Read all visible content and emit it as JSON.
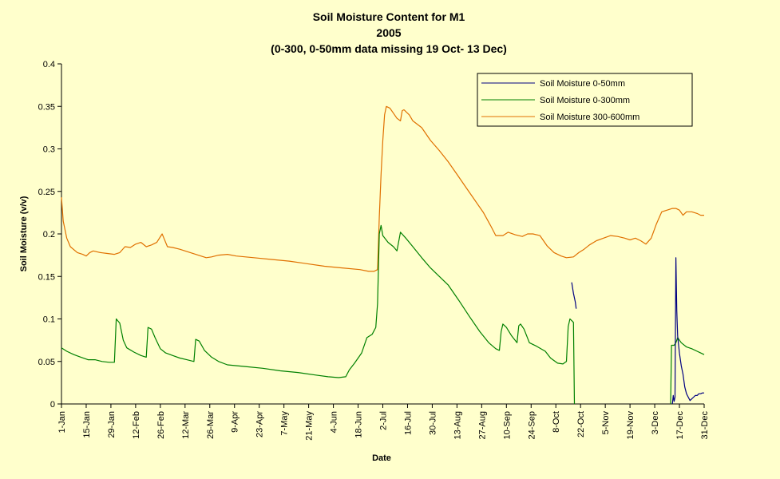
{
  "chart_data": {
    "type": "line",
    "title": "Soil Moisture Content for M1",
    "subtitle_1": "2005",
    "subtitle_2": "(0-300, 0-50mm data  missing 19 Oct- 13 Dec)",
    "xlabel": "Date",
    "ylabel": "Soil Moisture (v/v)",
    "ylim": [
      0,
      0.4
    ],
    "y_ticks": [
      "0",
      "0.05",
      "0.1",
      "0.15",
      "0.2",
      "0.25",
      "0.3",
      "0.35",
      "0.4"
    ],
    "xlim_day_of_year": [
      1,
      365
    ],
    "x_ticks": [
      {
        "day": 1,
        "label": "1-Jan"
      },
      {
        "day": 15,
        "label": "15-Jan"
      },
      {
        "day": 29,
        "label": "29-Jan"
      },
      {
        "day": 43,
        "label": "12-Feb"
      },
      {
        "day": 57,
        "label": "26-Feb"
      },
      {
        "day": 71,
        "label": "12-Mar"
      },
      {
        "day": 85,
        "label": "26-Mar"
      },
      {
        "day": 99,
        "label": "9-Apr"
      },
      {
        "day": 113,
        "label": "23-Apr"
      },
      {
        "day": 127,
        "label": "7-May"
      },
      {
        "day": 141,
        "label": "21-May"
      },
      {
        "day": 155,
        "label": "4-Jun"
      },
      {
        "day": 169,
        "label": "18-Jun"
      },
      {
        "day": 183,
        "label": "2-Jul"
      },
      {
        "day": 197,
        "label": "16-Jul"
      },
      {
        "day": 211,
        "label": "30-Jul"
      },
      {
        "day": 225,
        "label": "13-Aug"
      },
      {
        "day": 239,
        "label": "27-Aug"
      },
      {
        "day": 253,
        "label": "10-Sep"
      },
      {
        "day": 267,
        "label": "24-Sep"
      },
      {
        "day": 281,
        "label": "8-Oct"
      },
      {
        "day": 295,
        "label": "22-Oct"
      },
      {
        "day": 309,
        "label": "5-Nov"
      },
      {
        "day": 323,
        "label": "19-Nov"
      },
      {
        "day": 337,
        "label": "3-Dec"
      },
      {
        "day": 351,
        "label": "17-Dec"
      },
      {
        "day": 365,
        "label": "31-Dec"
      }
    ],
    "grid": false,
    "legend_position": "top-right",
    "series": [
      {
        "name": "Soil Moisture 0-50mm",
        "color": "#000080",
        "segments": [
          [
            [
              290,
              0.143
            ],
            [
              291,
              0.13
            ],
            [
              292,
              0.12
            ],
            [
              292.5,
              0.112
            ]
          ],
          [
            [
              347,
              0.0
            ],
            [
              347.5,
              0.01
            ],
            [
              348,
              0.003
            ],
            [
              348.5,
              0.008
            ],
            [
              349,
              0.172
            ],
            [
              349.5,
              0.11
            ],
            [
              350,
              0.08
            ],
            [
              351,
              0.06
            ],
            [
              352,
              0.045
            ],
            [
              353,
              0.035
            ],
            [
              354,
              0.02
            ],
            [
              355,
              0.012
            ],
            [
              356,
              0.008
            ],
            [
              357,
              0.004
            ],
            [
              358,
              0.006
            ],
            [
              359,
              0.008
            ],
            [
              360,
              0.01
            ],
            [
              361,
              0.01
            ],
            [
              362,
              0.012
            ],
            [
              363,
              0.012
            ],
            [
              364,
              0.013
            ],
            [
              365,
              0.013
            ]
          ]
        ]
      },
      {
        "name": "Soil Moisture 0-300mm",
        "color": "#008000",
        "segments": [
          [
            [
              1,
              0.066
            ],
            [
              4,
              0.062
            ],
            [
              8,
              0.058
            ],
            [
              12,
              0.055
            ],
            [
              16,
              0.052
            ],
            [
              20,
              0.052
            ],
            [
              24,
              0.05
            ],
            [
              28,
              0.049
            ],
            [
              31,
              0.049
            ],
            [
              32,
              0.1
            ],
            [
              34,
              0.095
            ],
            [
              36,
              0.075
            ],
            [
              38,
              0.066
            ],
            [
              42,
              0.061
            ],
            [
              46,
              0.057
            ],
            [
              49,
              0.055
            ],
            [
              50,
              0.09
            ],
            [
              52,
              0.088
            ],
            [
              54,
              0.078
            ],
            [
              57,
              0.065
            ],
            [
              60,
              0.06
            ],
            [
              64,
              0.057
            ],
            [
              68,
              0.054
            ],
            [
              72,
              0.052
            ],
            [
              76,
              0.05
            ],
            [
              77,
              0.076
            ],
            [
              79,
              0.074
            ],
            [
              82,
              0.063
            ],
            [
              86,
              0.055
            ],
            [
              90,
              0.05
            ],
            [
              95,
              0.046
            ],
            [
              105,
              0.044
            ],
            [
              115,
              0.042
            ],
            [
              125,
              0.039
            ],
            [
              135,
              0.037
            ],
            [
              145,
              0.034
            ],
            [
              152,
              0.032
            ],
            [
              158,
              0.031
            ],
            [
              162,
              0.032
            ],
            [
              164,
              0.04
            ],
            [
              167,
              0.048
            ],
            [
              171,
              0.06
            ],
            [
              174,
              0.078
            ],
            [
              177,
              0.082
            ],
            [
              179,
              0.09
            ],
            [
              180,
              0.118
            ],
            [
              181,
              0.2
            ],
            [
              182,
              0.21
            ],
            [
              183,
              0.198
            ],
            [
              186,
              0.19
            ],
            [
              189,
              0.185
            ],
            [
              191,
              0.18
            ],
            [
              193,
              0.202
            ],
            [
              196,
              0.195
            ],
            [
              200,
              0.185
            ],
            [
              205,
              0.172
            ],
            [
              210,
              0.16
            ],
            [
              215,
              0.15
            ],
            [
              220,
              0.14
            ],
            [
              226,
              0.122
            ],
            [
              232,
              0.103
            ],
            [
              238,
              0.085
            ],
            [
              243,
              0.072
            ],
            [
              247,
              0.065
            ],
            [
              249,
              0.063
            ],
            [
              250,
              0.085
            ],
            [
              251,
              0.094
            ],
            [
              253,
              0.09
            ],
            [
              256,
              0.08
            ],
            [
              259,
              0.072
            ],
            [
              260,
              0.092
            ],
            [
              261,
              0.094
            ],
            [
              263,
              0.088
            ],
            [
              266,
              0.072
            ],
            [
              270,
              0.068
            ],
            [
              275,
              0.062
            ],
            [
              278,
              0.054
            ],
            [
              282,
              0.048
            ],
            [
              285,
              0.047
            ],
            [
              287,
              0.05
            ],
            [
              288,
              0.091
            ],
            [
              289,
              0.1
            ],
            [
              290,
              0.098
            ],
            [
              291,
              0.096
            ],
            [
              291.5,
              0.0
            ]
          ],
          [
            [
              346,
              0.0
            ],
            [
              346.5,
              0.069
            ],
            [
              348,
              0.069
            ],
            [
              349,
              0.072
            ],
            [
              350,
              0.078
            ],
            [
              352,
              0.072
            ],
            [
              355,
              0.067
            ],
            [
              358,
              0.065
            ],
            [
              361,
              0.062
            ],
            [
              363,
              0.06
            ],
            [
              365,
              0.058
            ]
          ]
        ]
      },
      {
        "name": "Soil Moisture 300-600mm",
        "color": "#E07000",
        "segments": [
          [
            [
              1,
              0.243
            ],
            [
              2,
              0.215
            ],
            [
              4,
              0.195
            ],
            [
              6,
              0.185
            ],
            [
              10,
              0.178
            ],
            [
              13,
              0.176
            ],
            [
              15,
              0.174
            ],
            [
              17,
              0.178
            ],
            [
              19,
              0.18
            ],
            [
              23,
              0.178
            ],
            [
              27,
              0.177
            ],
            [
              31,
              0.176
            ],
            [
              34,
              0.178
            ],
            [
              37,
              0.185
            ],
            [
              40,
              0.184
            ],
            [
              43,
              0.188
            ],
            [
              46,
              0.19
            ],
            [
              49,
              0.185
            ],
            [
              52,
              0.187
            ],
            [
              55,
              0.19
            ],
            [
              58,
              0.2
            ],
            [
              59,
              0.195
            ],
            [
              61,
              0.185
            ],
            [
              64,
              0.184
            ],
            [
              68,
              0.182
            ],
            [
              71,
              0.18
            ],
            [
              74,
              0.178
            ],
            [
              77,
              0.176
            ],
            [
              80,
              0.174
            ],
            [
              83,
              0.172
            ],
            [
              86,
              0.173
            ],
            [
              90,
              0.175
            ],
            [
              95,
              0.176
            ],
            [
              100,
              0.174
            ],
            [
              110,
              0.172
            ],
            [
              120,
              0.17
            ],
            [
              130,
              0.168
            ],
            [
              140,
              0.165
            ],
            [
              150,
              0.162
            ],
            [
              160,
              0.16
            ],
            [
              170,
              0.158
            ],
            [
              175,
              0.156
            ],
            [
              178,
              0.156
            ],
            [
              180,
              0.158
            ],
            [
              181,
              0.22
            ],
            [
              182,
              0.27
            ],
            [
              183,
              0.31
            ],
            [
              184,
              0.34
            ],
            [
              185,
              0.35
            ],
            [
              187,
              0.348
            ],
            [
              189,
              0.342
            ],
            [
              191,
              0.336
            ],
            [
              193,
              0.333
            ],
            [
              194,
              0.345
            ],
            [
              195,
              0.346
            ],
            [
              198,
              0.34
            ],
            [
              200,
              0.333
            ],
            [
              205,
              0.325
            ],
            [
              210,
              0.31
            ],
            [
              215,
              0.298
            ],
            [
              220,
              0.285
            ],
            [
              225,
              0.27
            ],
            [
              230,
              0.255
            ],
            [
              235,
              0.24
            ],
            [
              240,
              0.225
            ],
            [
              244,
              0.21
            ],
            [
              247,
              0.198
            ],
            [
              251,
              0.198
            ],
            [
              254,
              0.202
            ],
            [
              258,
              0.199
            ],
            [
              262,
              0.197
            ],
            [
              265,
              0.2
            ],
            [
              268,
              0.2
            ],
            [
              272,
              0.198
            ],
            [
              276,
              0.186
            ],
            [
              280,
              0.178
            ],
            [
              284,
              0.174
            ],
            [
              287,
              0.172
            ],
            [
              291,
              0.173
            ],
            [
              294,
              0.178
            ],
            [
              297,
              0.182
            ],
            [
              300,
              0.187
            ],
            [
              304,
              0.192
            ],
            [
              308,
              0.195
            ],
            [
              312,
              0.198
            ],
            [
              316,
              0.197
            ],
            [
              320,
              0.195
            ],
            [
              323,
              0.193
            ],
            [
              326,
              0.195
            ],
            [
              329,
              0.192
            ],
            [
              332,
              0.188
            ],
            [
              335,
              0.195
            ],
            [
              338,
              0.212
            ],
            [
              341,
              0.226
            ],
            [
              344,
              0.228
            ],
            [
              347,
              0.23
            ],
            [
              349,
              0.23
            ],
            [
              351,
              0.228
            ],
            [
              353,
              0.222
            ],
            [
              355,
              0.226
            ],
            [
              358,
              0.226
            ],
            [
              361,
              0.224
            ],
            [
              363,
              0.222
            ],
            [
              365,
              0.222
            ]
          ]
        ]
      }
    ]
  }
}
